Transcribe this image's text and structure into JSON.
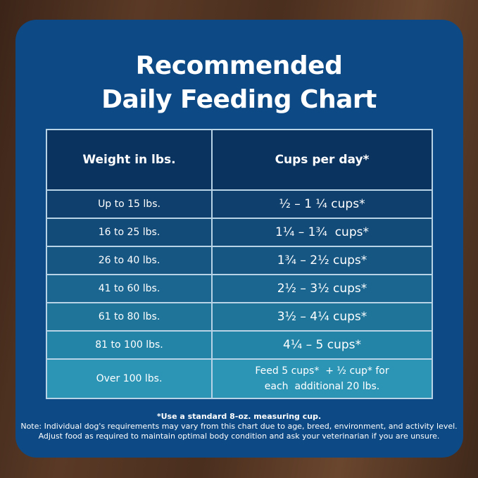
{
  "title": [
    "Recommended",
    "Daily Feeding Chart"
  ],
  "table": {
    "headers": [
      "Weight in lbs.",
      "Cups per day*"
    ],
    "rows": [
      {
        "weight": "Up to 15 lbs.",
        "cups": "½ – 1 ¼ cups*"
      },
      {
        "weight": "16 to 25 lbs.",
        "cups": "1¼ – 1¾  cups*"
      },
      {
        "weight": "26 to 40 lbs.",
        "cups": "1¾ – 2½ cups*"
      },
      {
        "weight": "41 to 60 lbs.",
        "cups": "2½ – 3½ cups*"
      },
      {
        "weight": "61 to 80 lbs.",
        "cups": "3½ – 4¼ cups*"
      },
      {
        "weight": "81 to 100 lbs.",
        "cups": "4¼ – 5 cups*"
      },
      {
        "weight": "Over 100 lbs.",
        "cups": "Feed 5 cups*  + ½ cup* for",
        "cups2": "each  additional 20 lbs."
      }
    ]
  },
  "footnote": "*Use a standard 8-oz. measuring cup.",
  "notes": [
    "Note: Individual dog's requirements may vary from this chart due to age, breed, environment, and activity level.",
    "Adjust food as required to maintain optimal body condition and ask your veterinarian if you are unsure."
  ],
  "colors": {
    "panel": "#0d4a85",
    "header": "#0b335f",
    "rows": [
      "#0f3f6c",
      "#124a78",
      "#165683",
      "#1a6690",
      "#1f7599",
      "#2484a7",
      "#2c95b6"
    ]
  }
}
